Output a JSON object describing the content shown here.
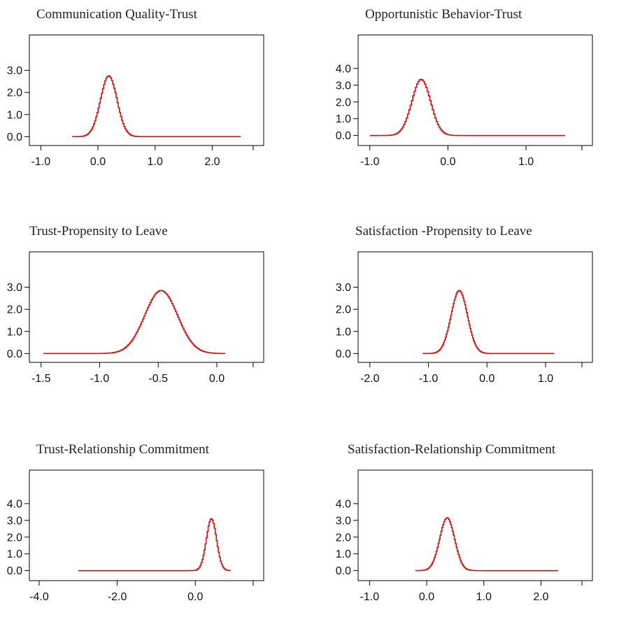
{
  "chart_data": [
    {
      "type": "line",
      "title": "Communication Quality-Trust",
      "x_ticks": [
        "-1.0",
        "0.0",
        "1.0",
        "2.0"
      ],
      "x_tick_values": [
        -1.0,
        0.0,
        1.0,
        2.0
      ],
      "y_ticks": [
        "0.0",
        "1.0",
        "2.0",
        "3.0"
      ],
      "y_tick_values": [
        0.0,
        1.0,
        2.0,
        3.0
      ],
      "xlim": [
        -1.2,
        2.9
      ],
      "ylim": [
        -0.4,
        4.6
      ],
      "grid": false,
      "line_color": "#cc1111",
      "density": {
        "mean": 0.18,
        "sd": 0.145,
        "peak": 2.75,
        "x_start": -0.45,
        "x_end": 2.5
      }
    },
    {
      "type": "line",
      "title": "Opportunistic Behavior-Trust",
      "x_ticks": [
        "-1.0",
        "0.0",
        "1.0"
      ],
      "x_tick_values": [
        -1.0,
        0.0,
        1.0
      ],
      "y_ticks": [
        "0.0",
        "1.0",
        "2.0",
        "3.0",
        "4.0"
      ],
      "y_tick_values": [
        0.0,
        1.0,
        2.0,
        3.0,
        4.0
      ],
      "xlim": [
        -1.15,
        1.85
      ],
      "ylim": [
        -0.6,
        6.0
      ],
      "grid": false,
      "line_color": "#cc1111",
      "density": {
        "mean": -0.35,
        "sd": 0.12,
        "peak": 3.35,
        "x_start": -1.0,
        "x_end": 1.5
      }
    },
    {
      "type": "line",
      "title": "Trust-Propensity to Leave",
      "x_ticks": [
        "-1.5",
        "-1.0",
        "-0.5",
        "0.0"
      ],
      "x_tick_values": [
        -1.5,
        -1.0,
        -0.5,
        0.0
      ],
      "y_ticks": [
        "0.0",
        "1.0",
        "2.0",
        "3.0"
      ],
      "y_tick_values": [
        0.0,
        1.0,
        2.0,
        3.0
      ],
      "xlim": [
        -1.6,
        0.4
      ],
      "ylim": [
        -0.4,
        4.6
      ],
      "grid": false,
      "line_color": "#cc1111",
      "density": {
        "mean": -0.48,
        "sd": 0.14,
        "peak": 2.85,
        "x_start": -1.48,
        "x_end": 0.07
      }
    },
    {
      "type": "line",
      "title": "Satisfaction -Propensity to Leave",
      "x_ticks": [
        "-2.0",
        "-1.0",
        "0.0",
        "1.0"
      ],
      "x_tick_values": [
        -2.0,
        -1.0,
        0.0,
        1.0
      ],
      "y_ticks": [
        "0.0",
        "1.0",
        "2.0",
        "3.0"
      ],
      "y_tick_values": [
        0.0,
        1.0,
        2.0,
        3.0
      ],
      "xlim": [
        -2.2,
        1.8
      ],
      "ylim": [
        -0.4,
        4.6
      ],
      "grid": false,
      "line_color": "#cc1111",
      "density": {
        "mean": -0.48,
        "sd": 0.14,
        "peak": 2.85,
        "x_start": -1.1,
        "x_end": 1.15
      }
    },
    {
      "type": "line",
      "title": "Trust-Relationship Commitment",
      "x_ticks": [
        "-4.0",
        "-2.0",
        "0.0"
      ],
      "x_tick_values": [
        -4.0,
        -2.0,
        0.0
      ],
      "y_ticks": [
        "0.0",
        "1.0",
        "2.0",
        "3.0",
        "4.0"
      ],
      "y_tick_values": [
        0.0,
        1.0,
        2.0,
        3.0,
        4.0
      ],
      "xlim": [
        -4.25,
        1.75
      ],
      "ylim": [
        -0.6,
        6.0
      ],
      "grid": false,
      "line_color": "#cc1111",
      "density": {
        "mean": 0.4,
        "sd": 0.13,
        "peak": 3.1,
        "x_start": -3.0,
        "x_end": 0.9
      }
    },
    {
      "type": "line",
      "title": "Satisfaction-Relationship Commitment",
      "x_ticks": [
        "-1.0",
        "0.0",
        "1.0",
        "2.0"
      ],
      "x_tick_values": [
        -1.0,
        0.0,
        1.0,
        2.0
      ],
      "y_ticks": [
        "0.0",
        "1.0",
        "2.0",
        "3.0",
        "4.0"
      ],
      "y_tick_values": [
        0.0,
        1.0,
        2.0,
        3.0,
        4.0
      ],
      "xlim": [
        -1.2,
        2.9
      ],
      "ylim": [
        -0.6,
        6.0
      ],
      "grid": false,
      "line_color": "#cc1111",
      "density": {
        "mean": 0.35,
        "sd": 0.13,
        "peak": 3.15,
        "x_start": -0.2,
        "x_end": 2.3
      }
    }
  ]
}
